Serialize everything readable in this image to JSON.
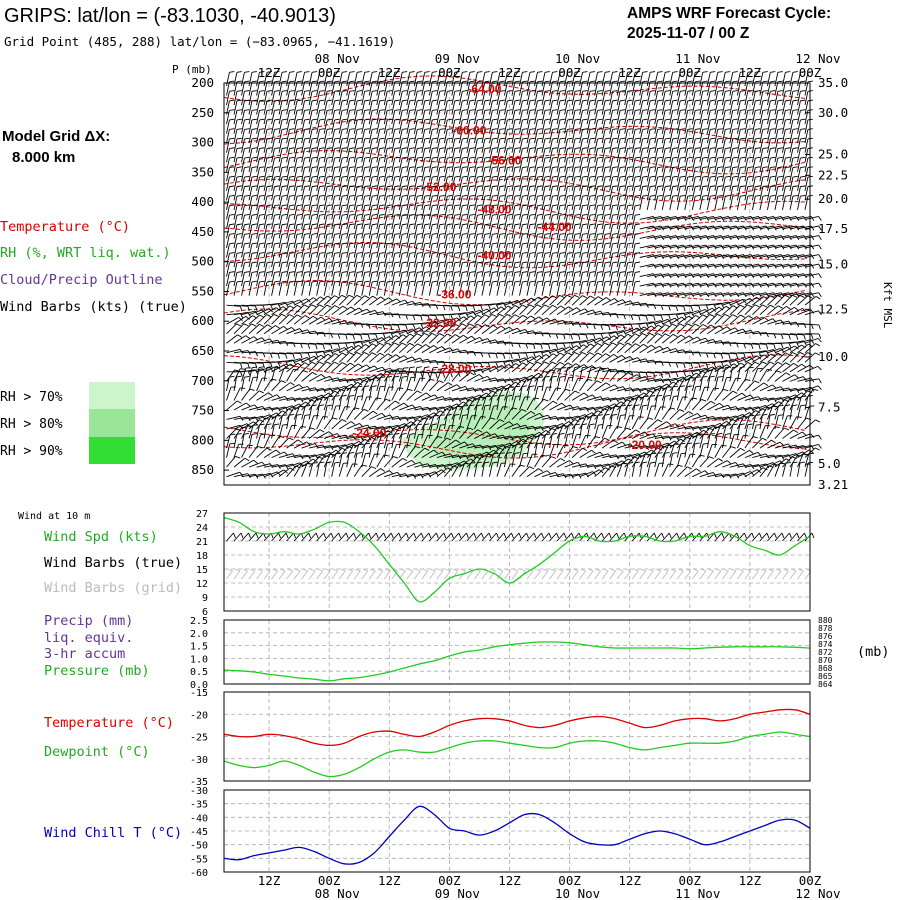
{
  "header": {
    "title": "GRIPS:  lat/lon = (-83.1030, -40.9013)",
    "subtitle": "Grid Point (485, 288) lat/lon = (−83.0965, −41.1619)",
    "cycle_line1": "AMPS WRF Forecast Cycle:",
    "cycle_line2": "2025-11-07 / 00  Z"
  },
  "left_panel": {
    "grid_label": "Model Grid ΔX:",
    "grid_value": "8.000 km",
    "legend_temperature": "Temperature (°C)",
    "legend_rh": "RH (%, WRT liq. wat.)",
    "legend_cloud": "Cloud/Precip Outline",
    "legend_wind": "Wind Barbs (kts) (true)",
    "rh_levels": [
      "RH > 70%",
      "RH > 80%",
      "RH > 90%"
    ]
  },
  "colors": {
    "temperature": "#dd0000",
    "dewpoint": "#22cc22",
    "wind_speed": "#22cc22",
    "pressure": "#22cc22",
    "wind_chill": "#0000bb",
    "cloud": "#663399",
    "grid_barbs": "#bbbbbb",
    "rh70": "#ccf5cc",
    "rh80": "#99e699",
    "rh90": "#33dd33"
  },
  "time_axis": {
    "hour_labels": [
      "12Z",
      "00Z",
      "12Z",
      "00Z",
      "12Z",
      "00Z",
      "12Z",
      "00Z",
      "12Z",
      "00Z"
    ],
    "hour_positions": [
      12,
      24,
      36,
      48,
      60,
      72,
      84,
      96,
      108,
      120
    ],
    "date_labels": [
      "08 Nov",
      "09 Nov",
      "10 Nov",
      "11 Nov",
      "12 Nov"
    ],
    "date_positions": [
      24,
      48,
      72,
      96,
      120
    ],
    "range_hours": [
      3,
      120
    ]
  },
  "chart_data": [
    {
      "type": "contour",
      "name": "cross-section",
      "ylabel": "P (mb)",
      "right_axis_label": "Kft MSL",
      "pressure_ticks": [
        200,
        250,
        300,
        350,
        400,
        450,
        500,
        550,
        600,
        650,
        700,
        750,
        800,
        850
      ],
      "height_ticks": [
        {
          "p": 200,
          "label": "35.0"
        },
        {
          "p": 250,
          "label": "30.0"
        },
        {
          "p": 320,
          "label": "25.0"
        },
        {
          "p": 355,
          "label": "22.5"
        },
        {
          "p": 395,
          "label": "20.0"
        },
        {
          "p": 445,
          "label": "17.5"
        },
        {
          "p": 505,
          "label": "15.0"
        },
        {
          "p": 580,
          "label": "12.5"
        },
        {
          "p": 660,
          "label": "10.0"
        },
        {
          "p": 745,
          "label": "7.5"
        },
        {
          "p": 840,
          "label": "5.0"
        },
        {
          "p": 875,
          "label": "3.21"
        }
      ],
      "ylim": [
        200,
        875
      ],
      "temperature_contour_labels": [
        {
          "t": 55,
          "p": 210,
          "value": "-64.00"
        },
        {
          "t": 52,
          "p": 280,
          "value": "-60.00"
        },
        {
          "t": 59,
          "p": 330,
          "value": "-56.00"
        },
        {
          "t": 46,
          "p": 375,
          "value": "-52.00"
        },
        {
          "t": 57,
          "p": 412,
          "value": "-48.00"
        },
        {
          "t": 69,
          "p": 442,
          "value": "-44.00"
        },
        {
          "t": 57,
          "p": 490,
          "value": "-40.00"
        },
        {
          "t": 49,
          "p": 555,
          "value": "-36.00"
        },
        {
          "t": 46,
          "p": 603,
          "value": "-32.00"
        },
        {
          "t": 49,
          "p": 680,
          "value": "-28.00"
        },
        {
          "t": 32,
          "p": 788,
          "value": "-24.00"
        },
        {
          "t": 87,
          "p": 808,
          "value": "-20.00"
        }
      ],
      "rh70_region": [
        [
          38,
          800
        ],
        [
          46,
          765
        ],
        [
          52,
          735
        ],
        [
          58,
          720
        ],
        [
          64,
          725
        ],
        [
          67,
          760
        ],
        [
          65,
          800
        ],
        [
          60,
          835
        ],
        [
          50,
          850
        ],
        [
          42,
          840
        ]
      ],
      "rh80_region": [
        [
          44,
          800
        ],
        [
          50,
          770
        ],
        [
          56,
          745
        ],
        [
          62,
          750
        ],
        [
          64,
          785
        ],
        [
          60,
          820
        ],
        [
          52,
          835
        ],
        [
          46,
          825
        ]
      ]
    },
    {
      "type": "line",
      "name": "wind-10m",
      "panel_label": "Wind at 10 m",
      "ylabel": "Wind Spd (kts)",
      "barb_label_true": "Wind Barbs (true)",
      "barb_label_grid": "Wind Barbs (grid)",
      "ylim": [
        6,
        27
      ],
      "yticks": [
        6,
        9,
        12,
        15,
        18,
        21,
        24,
        27
      ],
      "x": [
        3,
        6,
        9,
        12,
        15,
        18,
        21,
        24,
        27,
        30,
        33,
        36,
        39,
        42,
        45,
        48,
        51,
        54,
        57,
        60,
        63,
        66,
        69,
        72,
        75,
        78,
        81,
        84,
        87,
        90,
        93,
        96,
        99,
        102,
        105,
        108,
        111,
        114,
        117,
        120
      ],
      "values": [
        26,
        25,
        23,
        22.5,
        23,
        22.5,
        23.5,
        25,
        25,
        23,
        20,
        16,
        12,
        8,
        10,
        13,
        14,
        15,
        14,
        12,
        14,
        16,
        18.5,
        21,
        22,
        21,
        21,
        22,
        22,
        21,
        21,
        22,
        22,
        23,
        22,
        20,
        19,
        18,
        20,
        22
      ]
    },
    {
      "type": "line",
      "name": "precip-pressure",
      "ylabel": "Precip (mm)",
      "ylabel2": "liq. equiv.",
      "ylabel3": "3-hr accum",
      "ylabel4": "Pressure (mb)",
      "right_unit": "(mb)",
      "ylim": [
        0,
        2.5
      ],
      "yticks": [
        "0.0",
        "0.5",
        "1.0",
        "1.5",
        "2.0",
        "2.5"
      ],
      "pressure_ticks": [
        "864",
        "865",
        "868",
        "870",
        "872",
        "874",
        "876",
        "878",
        "880"
      ],
      "pressure_range": [
        864,
        880
      ],
      "x": [
        3,
        6,
        9,
        12,
        15,
        18,
        21,
        24,
        27,
        30,
        33,
        36,
        39,
        42,
        45,
        48,
        51,
        54,
        57,
        60,
        63,
        66,
        69,
        72,
        75,
        78,
        81,
        84,
        87,
        90,
        93,
        96,
        99,
        102,
        105,
        108,
        111,
        114,
        117,
        120
      ],
      "pressure": [
        867.5,
        867.3,
        867.0,
        866.4,
        866.0,
        865.5,
        865.2,
        864.8,
        865.3,
        865.6,
        866.2,
        867.0,
        868.0,
        869.0,
        869.8,
        871.0,
        872.0,
        872.5,
        873.3,
        873.8,
        874.2,
        874.5,
        874.5,
        874.3,
        873.8,
        873.3,
        873.0,
        873.0,
        873.0,
        873.0,
        873.0,
        872.8,
        873.0,
        873.2,
        873.3,
        873.3,
        873.3,
        873.3,
        873.2,
        873.0
      ],
      "precip": []
    },
    {
      "type": "line",
      "name": "temperature-dewpoint",
      "ylim": [
        -35,
        -15
      ],
      "yticks": [
        -35,
        -30,
        -25,
        -20,
        -15
      ],
      "x": [
        3,
        6,
        9,
        12,
        15,
        18,
        21,
        24,
        27,
        30,
        33,
        36,
        39,
        42,
        45,
        48,
        51,
        54,
        57,
        60,
        63,
        66,
        69,
        72,
        75,
        78,
        81,
        84,
        87,
        90,
        93,
        96,
        99,
        102,
        105,
        108,
        111,
        114,
        117,
        120
      ],
      "series": [
        {
          "name": "Temperature (°C)",
          "values": [
            -24.5,
            -25,
            -25,
            -24.5,
            -24.8,
            -25.5,
            -26.5,
            -27,
            -26.5,
            -25,
            -24,
            -23.8,
            -24.5,
            -25,
            -24,
            -22.5,
            -21.5,
            -21,
            -21,
            -21.5,
            -22.5,
            -23,
            -22.5,
            -21.5,
            -20.8,
            -20.5,
            -21,
            -22,
            -23,
            -22.5,
            -21.5,
            -21,
            -21,
            -21.5,
            -21,
            -20,
            -19.5,
            -19,
            -19,
            -20
          ]
        },
        {
          "name": "Dewpoint (°C)",
          "values": [
            -30.5,
            -31.5,
            -32,
            -31.5,
            -30.5,
            -31.5,
            -33,
            -34,
            -33.5,
            -32,
            -30,
            -28.5,
            -28,
            -28.5,
            -28.5,
            -27.5,
            -26.5,
            -26,
            -26,
            -26.5,
            -27,
            -27.5,
            -27.5,
            -26.5,
            -26,
            -26,
            -26.5,
            -27.5,
            -28,
            -27.5,
            -27,
            -26.5,
            -26.5,
            -26.5,
            -26,
            -25,
            -24.5,
            -24,
            -24.5,
            -25
          ]
        }
      ]
    },
    {
      "type": "line",
      "name": "wind-chill",
      "ylim": [
        -60,
        -30
      ],
      "yticks": [
        -60,
        -55,
        -50,
        -45,
        -40,
        -35,
        -30
      ],
      "x": [
        3,
        6,
        9,
        12,
        15,
        18,
        21,
        24,
        27,
        30,
        33,
        36,
        39,
        42,
        45,
        48,
        51,
        54,
        57,
        60,
        63,
        66,
        69,
        72,
        75,
        78,
        81,
        84,
        87,
        90,
        93,
        96,
        99,
        102,
        105,
        108,
        111,
        114,
        117,
        120
      ],
      "series": [
        {
          "name": "Wind Chill T (°C)",
          "values": [
            -55,
            -55.5,
            -54,
            -53,
            -52,
            -51,
            -52.5,
            -55,
            -57,
            -56.5,
            -53,
            -47,
            -41,
            -36,
            -39,
            -44,
            -45,
            -46.5,
            -45,
            -42,
            -39,
            -39,
            -42,
            -46,
            -49,
            -50,
            -50,
            -48,
            -46,
            -45,
            -46,
            -48,
            -50,
            -49,
            -47,
            -45,
            -43,
            -41,
            -41,
            -44
          ]
        }
      ]
    }
  ]
}
